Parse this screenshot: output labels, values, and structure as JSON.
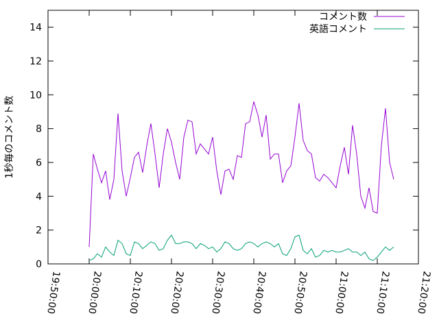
{
  "chart_data": {
    "type": "line",
    "ylabel": "1秒毎のコメント数",
    "x": [
      "20:00:00",
      "20:01:00",
      "20:02:00",
      "20:03:00",
      "20:04:00",
      "20:05:00",
      "20:06:00",
      "20:07:00",
      "20:08:00",
      "20:09:00",
      "20:10:00",
      "20:11:00",
      "20:12:00",
      "20:13:00",
      "20:14:00",
      "20:15:00",
      "20:16:00",
      "20:17:00",
      "20:18:00",
      "20:19:00",
      "20:20:00",
      "20:21:00",
      "20:22:00",
      "20:23:00",
      "20:24:00",
      "20:25:00",
      "20:26:00",
      "20:27:00",
      "20:28:00",
      "20:29:00",
      "20:30:00",
      "20:31:00",
      "20:32:00",
      "20:33:00",
      "20:34:00",
      "20:35:00",
      "20:36:00",
      "20:37:00",
      "20:38:00",
      "20:39:00",
      "20:40:00",
      "20:41:00",
      "20:42:00",
      "20:43:00",
      "20:44:00",
      "20:45:00",
      "20:46:00",
      "20:47:00",
      "20:48:00",
      "20:49:00",
      "20:50:00",
      "20:51:00",
      "20:52:00",
      "20:53:00",
      "20:54:00",
      "20:55:00",
      "20:56:00",
      "20:57:00",
      "20:58:00",
      "20:59:00",
      "21:00:00",
      "21:01:00",
      "21:02:00",
      "21:03:00",
      "21:04:00",
      "21:05:00",
      "21:06:00",
      "21:07:00",
      "21:08:00",
      "21:09:00",
      "21:10:00",
      "21:11:00",
      "21:12:00",
      "21:13:00",
      "21:14:00"
    ],
    "series": [
      {
        "name": "コメント数",
        "color": "#9400d3",
        "values": [
          1.0,
          6.5,
          5.6,
          4.8,
          5.5,
          3.8,
          5.0,
          8.9,
          5.5,
          4.0,
          5.1,
          6.3,
          6.6,
          5.4,
          7.0,
          8.3,
          6.5,
          4.5,
          6.5,
          8.0,
          7.2,
          6.0,
          5.0,
          7.5,
          8.5,
          8.4,
          6.5,
          7.1,
          6.8,
          6.5,
          7.5,
          5.5,
          4.1,
          5.5,
          5.6,
          5.0,
          6.4,
          6.3,
          8.3,
          8.4,
          9.6,
          8.8,
          7.5,
          8.8,
          6.2,
          6.5,
          6.5,
          4.8,
          5.5,
          5.8,
          7.5,
          9.5,
          7.3,
          6.7,
          6.5,
          5.1,
          4.9,
          5.3,
          5.1,
          4.8,
          4.5,
          5.8,
          6.9,
          5.3,
          8.2,
          6.5,
          4.0,
          3.3,
          4.5,
          3.1,
          3.0,
          7.0,
          9.2,
          6.0,
          5.0
        ]
      },
      {
        "name": "英語コメント",
        "color": "#009e73",
        "values": [
          0.2,
          0.3,
          0.6,
          0.4,
          1.0,
          0.7,
          0.5,
          1.4,
          1.2,
          0.6,
          0.5,
          1.3,
          1.2,
          0.9,
          1.1,
          1.3,
          1.2,
          0.8,
          0.9,
          1.4,
          1.7,
          1.2,
          1.2,
          1.3,
          1.3,
          1.2,
          0.9,
          1.2,
          1.1,
          0.9,
          1.0,
          0.7,
          0.9,
          1.3,
          1.2,
          0.9,
          0.8,
          0.9,
          1.2,
          1.3,
          1.2,
          1.0,
          1.2,
          1.3,
          1.2,
          1.0,
          1.2,
          0.6,
          0.5,
          0.9,
          1.6,
          1.7,
          0.8,
          0.6,
          0.9,
          0.4,
          0.5,
          0.8,
          0.7,
          0.8,
          0.7,
          0.7,
          0.8,
          0.9,
          0.7,
          0.7,
          0.5,
          0.7,
          0.3,
          0.2,
          0.4,
          0.7,
          1.0,
          0.8,
          1.0
        ]
      }
    ],
    "xlim": [
      "19:50:00",
      "21:20:00"
    ],
    "xticks": [
      "19:50:00",
      "20:00:00",
      "20:10:00",
      "20:20:00",
      "20:30:00",
      "20:40:00",
      "20:50:00",
      "21:00:00",
      "21:10:00",
      "21:20:00"
    ],
    "ylim": [
      0,
      15
    ],
    "yticks": [
      0,
      2,
      4,
      6,
      8,
      10,
      12,
      14
    ],
    "legend": "top-right"
  }
}
